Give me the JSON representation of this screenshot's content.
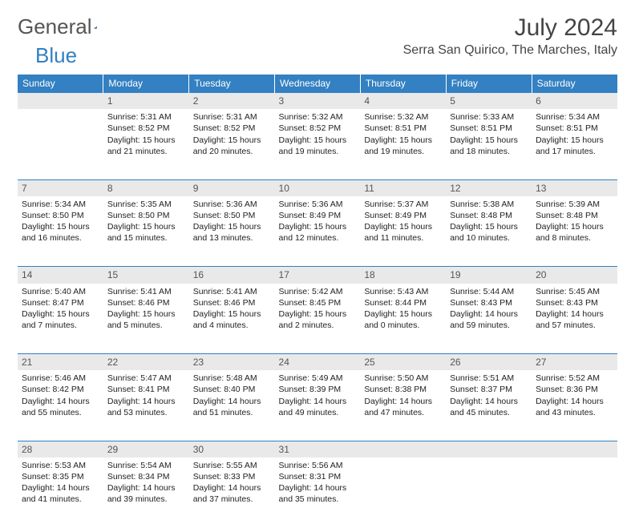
{
  "logo": {
    "text1": "General",
    "text2": "Blue"
  },
  "header": {
    "month_title": "July 2024",
    "location": "Serra San Quirico, The Marches, Italy"
  },
  "colors": {
    "header_bg": "#3380c2",
    "header_text": "#ffffff",
    "daynum_bg": "#e9e9e9",
    "text": "#222222",
    "rule": "#3380c2"
  },
  "day_headers": [
    "Sunday",
    "Monday",
    "Tuesday",
    "Wednesday",
    "Thursday",
    "Friday",
    "Saturday"
  ],
  "weeks": [
    {
      "nums": [
        "",
        "1",
        "2",
        "3",
        "4",
        "5",
        "6"
      ],
      "cells": [
        {
          "sunrise": "",
          "sunset": "",
          "daylight": ""
        },
        {
          "sunrise": "Sunrise: 5:31 AM",
          "sunset": "Sunset: 8:52 PM",
          "daylight": "Daylight: 15 hours and 21 minutes."
        },
        {
          "sunrise": "Sunrise: 5:31 AM",
          "sunset": "Sunset: 8:52 PM",
          "daylight": "Daylight: 15 hours and 20 minutes."
        },
        {
          "sunrise": "Sunrise: 5:32 AM",
          "sunset": "Sunset: 8:52 PM",
          "daylight": "Daylight: 15 hours and 19 minutes."
        },
        {
          "sunrise": "Sunrise: 5:32 AM",
          "sunset": "Sunset: 8:51 PM",
          "daylight": "Daylight: 15 hours and 19 minutes."
        },
        {
          "sunrise": "Sunrise: 5:33 AM",
          "sunset": "Sunset: 8:51 PM",
          "daylight": "Daylight: 15 hours and 18 minutes."
        },
        {
          "sunrise": "Sunrise: 5:34 AM",
          "sunset": "Sunset: 8:51 PM",
          "daylight": "Daylight: 15 hours and 17 minutes."
        }
      ]
    },
    {
      "nums": [
        "7",
        "8",
        "9",
        "10",
        "11",
        "12",
        "13"
      ],
      "cells": [
        {
          "sunrise": "Sunrise: 5:34 AM",
          "sunset": "Sunset: 8:50 PM",
          "daylight": "Daylight: 15 hours and 16 minutes."
        },
        {
          "sunrise": "Sunrise: 5:35 AM",
          "sunset": "Sunset: 8:50 PM",
          "daylight": "Daylight: 15 hours and 15 minutes."
        },
        {
          "sunrise": "Sunrise: 5:36 AM",
          "sunset": "Sunset: 8:50 PM",
          "daylight": "Daylight: 15 hours and 13 minutes."
        },
        {
          "sunrise": "Sunrise: 5:36 AM",
          "sunset": "Sunset: 8:49 PM",
          "daylight": "Daylight: 15 hours and 12 minutes."
        },
        {
          "sunrise": "Sunrise: 5:37 AM",
          "sunset": "Sunset: 8:49 PM",
          "daylight": "Daylight: 15 hours and 11 minutes."
        },
        {
          "sunrise": "Sunrise: 5:38 AM",
          "sunset": "Sunset: 8:48 PM",
          "daylight": "Daylight: 15 hours and 10 minutes."
        },
        {
          "sunrise": "Sunrise: 5:39 AM",
          "sunset": "Sunset: 8:48 PM",
          "daylight": "Daylight: 15 hours and 8 minutes."
        }
      ]
    },
    {
      "nums": [
        "14",
        "15",
        "16",
        "17",
        "18",
        "19",
        "20"
      ],
      "cells": [
        {
          "sunrise": "Sunrise: 5:40 AM",
          "sunset": "Sunset: 8:47 PM",
          "daylight": "Daylight: 15 hours and 7 minutes."
        },
        {
          "sunrise": "Sunrise: 5:41 AM",
          "sunset": "Sunset: 8:46 PM",
          "daylight": "Daylight: 15 hours and 5 minutes."
        },
        {
          "sunrise": "Sunrise: 5:41 AM",
          "sunset": "Sunset: 8:46 PM",
          "daylight": "Daylight: 15 hours and 4 minutes."
        },
        {
          "sunrise": "Sunrise: 5:42 AM",
          "sunset": "Sunset: 8:45 PM",
          "daylight": "Daylight: 15 hours and 2 minutes."
        },
        {
          "sunrise": "Sunrise: 5:43 AM",
          "sunset": "Sunset: 8:44 PM",
          "daylight": "Daylight: 15 hours and 0 minutes."
        },
        {
          "sunrise": "Sunrise: 5:44 AM",
          "sunset": "Sunset: 8:43 PM",
          "daylight": "Daylight: 14 hours and 59 minutes."
        },
        {
          "sunrise": "Sunrise: 5:45 AM",
          "sunset": "Sunset: 8:43 PM",
          "daylight": "Daylight: 14 hours and 57 minutes."
        }
      ]
    },
    {
      "nums": [
        "21",
        "22",
        "23",
        "24",
        "25",
        "26",
        "27"
      ],
      "cells": [
        {
          "sunrise": "Sunrise: 5:46 AM",
          "sunset": "Sunset: 8:42 PM",
          "daylight": "Daylight: 14 hours and 55 minutes."
        },
        {
          "sunrise": "Sunrise: 5:47 AM",
          "sunset": "Sunset: 8:41 PM",
          "daylight": "Daylight: 14 hours and 53 minutes."
        },
        {
          "sunrise": "Sunrise: 5:48 AM",
          "sunset": "Sunset: 8:40 PM",
          "daylight": "Daylight: 14 hours and 51 minutes."
        },
        {
          "sunrise": "Sunrise: 5:49 AM",
          "sunset": "Sunset: 8:39 PM",
          "daylight": "Daylight: 14 hours and 49 minutes."
        },
        {
          "sunrise": "Sunrise: 5:50 AM",
          "sunset": "Sunset: 8:38 PM",
          "daylight": "Daylight: 14 hours and 47 minutes."
        },
        {
          "sunrise": "Sunrise: 5:51 AM",
          "sunset": "Sunset: 8:37 PM",
          "daylight": "Daylight: 14 hours and 45 minutes."
        },
        {
          "sunrise": "Sunrise: 5:52 AM",
          "sunset": "Sunset: 8:36 PM",
          "daylight": "Daylight: 14 hours and 43 minutes."
        }
      ]
    },
    {
      "nums": [
        "28",
        "29",
        "30",
        "31",
        "",
        "",
        ""
      ],
      "cells": [
        {
          "sunrise": "Sunrise: 5:53 AM",
          "sunset": "Sunset: 8:35 PM",
          "daylight": "Daylight: 14 hours and 41 minutes."
        },
        {
          "sunrise": "Sunrise: 5:54 AM",
          "sunset": "Sunset: 8:34 PM",
          "daylight": "Daylight: 14 hours and 39 minutes."
        },
        {
          "sunrise": "Sunrise: 5:55 AM",
          "sunset": "Sunset: 8:33 PM",
          "daylight": "Daylight: 14 hours and 37 minutes."
        },
        {
          "sunrise": "Sunrise: 5:56 AM",
          "sunset": "Sunset: 8:31 PM",
          "daylight": "Daylight: 14 hours and 35 minutes."
        },
        {
          "sunrise": "",
          "sunset": "",
          "daylight": ""
        },
        {
          "sunrise": "",
          "sunset": "",
          "daylight": ""
        },
        {
          "sunrise": "",
          "sunset": "",
          "daylight": ""
        }
      ]
    }
  ]
}
